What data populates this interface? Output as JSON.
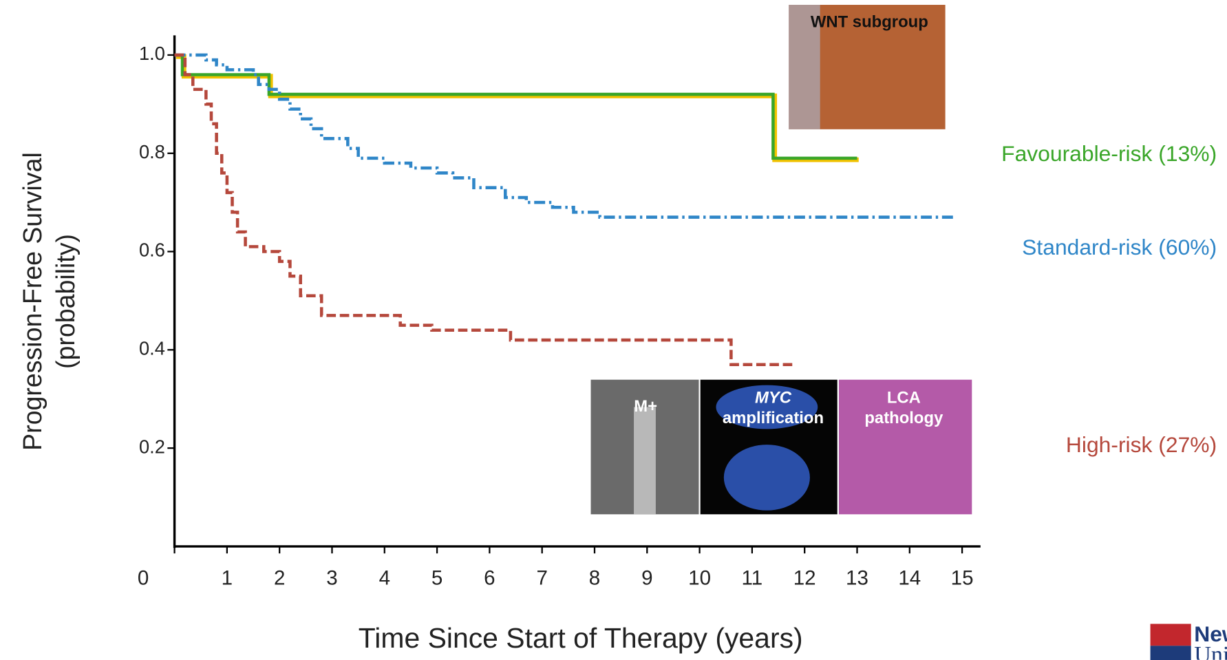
{
  "chart_data": {
    "type": "step",
    "ylabel": [
      "Progression-Free Survival",
      "(probability)"
    ],
    "xlabel": "Time Since Start of Therapy (years)",
    "xlim": [
      0,
      15.35
    ],
    "ylim": [
      0,
      1.04
    ],
    "xticks": [
      0,
      1,
      2,
      3,
      4,
      5,
      6,
      7,
      8,
      9,
      10,
      11,
      12,
      13,
      14,
      15
    ],
    "yticks": [
      0.2,
      0.4,
      0.6,
      {
        "value": 1,
        "label": "1.0"
      },
      0.8
    ],
    "series": [
      {
        "name": "Favourable-risk (13%)",
        "color": "#3aa629",
        "glow": "#f2c200",
        "dash": "solid",
        "x": [
          0,
          0.15,
          1.8,
          11.4,
          13.0
        ],
        "values": [
          1,
          0.96,
          0.92,
          0.79,
          0.79
        ]
      },
      {
        "name": "Standard-risk (60%)",
        "color": "#2f86c8",
        "dash": "dashdot",
        "x": [
          0,
          0.6,
          0.8,
          1.0,
          1.5,
          1.6,
          1.8,
          2.0,
          2.2,
          2.4,
          2.6,
          2.8,
          3.3,
          3.5,
          4.0,
          4.5,
          5.0,
          5.3,
          5.7,
          6.3,
          6.7,
          7.2,
          7.6,
          8.1,
          14.9
        ],
        "values": [
          1,
          0.99,
          0.98,
          0.97,
          0.96,
          0.94,
          0.93,
          0.91,
          0.89,
          0.87,
          0.85,
          0.83,
          0.81,
          0.79,
          0.78,
          0.77,
          0.76,
          0.75,
          0.73,
          0.71,
          0.7,
          0.69,
          0.68,
          0.67,
          0.67
        ]
      },
      {
        "name": "High-risk (27%)",
        "color": "#b5483c",
        "dash": "dash",
        "x": [
          0,
          0.2,
          0.35,
          0.6,
          0.7,
          0.8,
          0.9,
          1.0,
          1.1,
          1.2,
          1.35,
          1.7,
          2.0,
          2.2,
          2.4,
          2.8,
          4.3,
          4.9,
          6.4,
          10.6,
          11.8
        ],
        "values": [
          1,
          0.96,
          0.93,
          0.9,
          0.86,
          0.8,
          0.76,
          0.72,
          0.68,
          0.64,
          0.61,
          0.6,
          0.58,
          0.55,
          0.51,
          0.47,
          0.45,
          0.44,
          0.42,
          0.37,
          0.37
        ]
      }
    ],
    "panels": [
      [
        "WNT subgroup"
      ],
      [
        "M+"
      ],
      [
        "MYC",
        "amplification"
      ],
      [
        "LCA",
        "pathology"
      ]
    ],
    "logo": [
      "Newcastle",
      "University"
    ]
  }
}
